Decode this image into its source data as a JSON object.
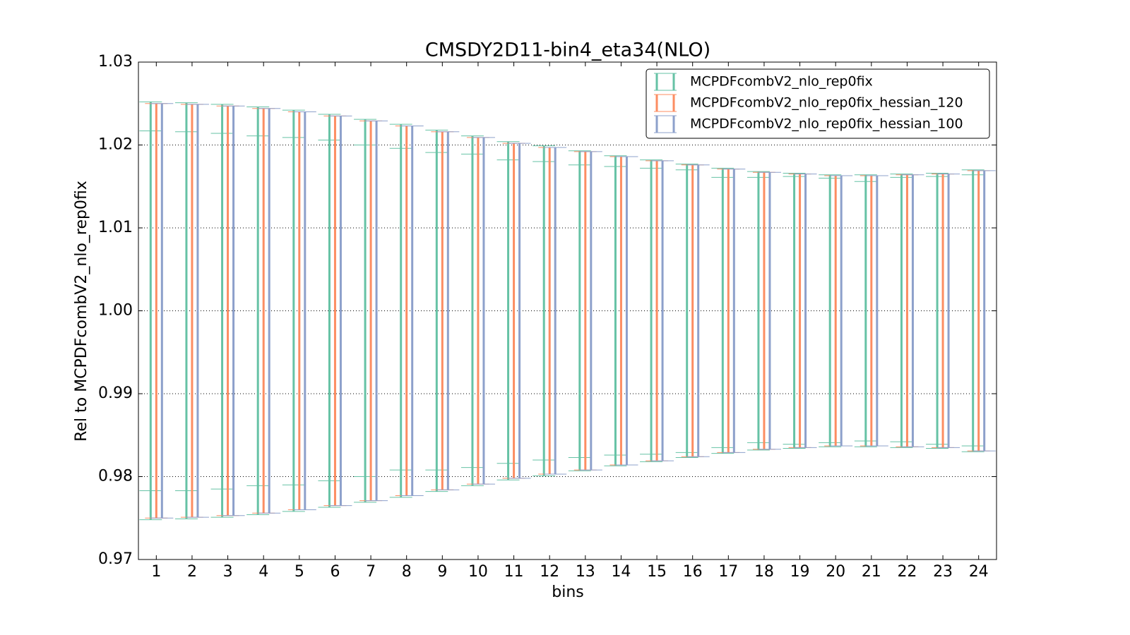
{
  "chart_data": {
    "type": "errorbar",
    "title": "CMSDY2D11-bin4_eta34(NLO)",
    "xlabel": "bins",
    "ylabel": "Rel to MCPDFcombV2_nlo_rep0fix",
    "categories": [
      "1",
      "2",
      "3",
      "4",
      "5",
      "6",
      "7",
      "8",
      "9",
      "10",
      "11",
      "12",
      "13",
      "14",
      "15",
      "16",
      "17",
      "18",
      "19",
      "20",
      "21",
      "22",
      "23",
      "24"
    ],
    "xlim": [
      0.5,
      24.5
    ],
    "ylim": [
      0.97,
      1.03
    ],
    "yticks": [
      0.97,
      0.98,
      0.99,
      {
        "value": 1.0,
        "label": "1.00"
      },
      1.01,
      1.02,
      1.03
    ],
    "grid": true,
    "legend": "upper right",
    "series": [
      {
        "name": "MCPDFcombV2_nlo_rep0fix",
        "color": "#66c2a5",
        "upper": [
          1.0252,
          1.0251,
          1.0249,
          1.0246,
          1.0242,
          1.0237,
          1.0231,
          1.0225,
          1.0218,
          1.0211,
          1.0204,
          1.0199,
          1.0193,
          1.0187,
          1.0182,
          1.0177,
          1.0172,
          1.0168,
          1.0166,
          1.0164,
          1.0164,
          1.0165,
          1.0166,
          1.017
        ],
        "lower": [
          0.9748,
          0.9749,
          0.9751,
          0.9754,
          0.9758,
          0.9763,
          0.9769,
          0.9775,
          0.9782,
          0.9789,
          0.9796,
          0.9801,
          0.9807,
          0.9813,
          0.9818,
          0.9823,
          0.9828,
          0.9832,
          0.9834,
          0.9836,
          0.9836,
          0.9835,
          0.9834,
          0.983
        ],
        "inner_upper": [
          1.0217,
          1.0216,
          1.0214,
          1.0211,
          1.0209,
          1.0206,
          1.02,
          1.0196,
          1.0191,
          1.0189,
          1.0182,
          1.018,
          1.0176,
          1.0174,
          1.0172,
          1.017,
          1.0161,
          1.0161,
          1.0162,
          1.016,
          1.0156,
          1.0161,
          1.0162,
          1.0164
        ],
        "inner_lower": [
          0.9783,
          0.9783,
          0.9785,
          0.9789,
          0.979,
          0.9795,
          0.98,
          0.9808,
          0.9808,
          0.9811,
          0.9816,
          0.982,
          0.9823,
          0.9826,
          0.9827,
          0.9829,
          0.9835,
          0.9841,
          0.9839,
          0.9841,
          0.9843,
          0.9842,
          0.9839,
          0.9837
        ]
      },
      {
        "name": "MCPDFcombV2_nlo_rep0fix_hessian_120",
        "color": "#fc8d62",
        "upper": [
          1.025,
          1.0249,
          1.0247,
          1.0244,
          1.024,
          1.0235,
          1.0229,
          1.0223,
          1.0216,
          1.0209,
          1.0202,
          1.0197,
          1.0192,
          1.0186,
          1.0181,
          1.0176,
          1.0171,
          1.0167,
          1.0165,
          1.0163,
          1.0163,
          1.0164,
          1.0165,
          1.0169
        ],
        "lower": [
          0.975,
          0.9751,
          0.9753,
          0.9756,
          0.976,
          0.9765,
          0.9771,
          0.9777,
          0.9784,
          0.9791,
          0.9798,
          0.9803,
          0.9808,
          0.9814,
          0.9819,
          0.9824,
          0.9829,
          0.9833,
          0.9835,
          0.9837,
          0.9837,
          0.9836,
          0.9835,
          0.9831
        ]
      },
      {
        "name": "MCPDFcombV2_nlo_rep0fix_hessian_100",
        "color": "#8da0cb",
        "upper": [
          1.025,
          1.0249,
          1.0247,
          1.0244,
          1.024,
          1.0235,
          1.0229,
          1.0223,
          1.0216,
          1.0209,
          1.0202,
          1.0197,
          1.0192,
          1.0186,
          1.0181,
          1.0176,
          1.0171,
          1.0167,
          1.0165,
          1.0163,
          1.0163,
          1.0164,
          1.0165,
          1.0169
        ],
        "lower": [
          0.975,
          0.9751,
          0.9753,
          0.9756,
          0.976,
          0.9765,
          0.9771,
          0.9777,
          0.9784,
          0.9791,
          0.9798,
          0.9803,
          0.9808,
          0.9814,
          0.9819,
          0.9824,
          0.9829,
          0.9833,
          0.9835,
          0.9837,
          0.9837,
          0.9836,
          0.9835,
          0.9831
        ]
      }
    ]
  }
}
